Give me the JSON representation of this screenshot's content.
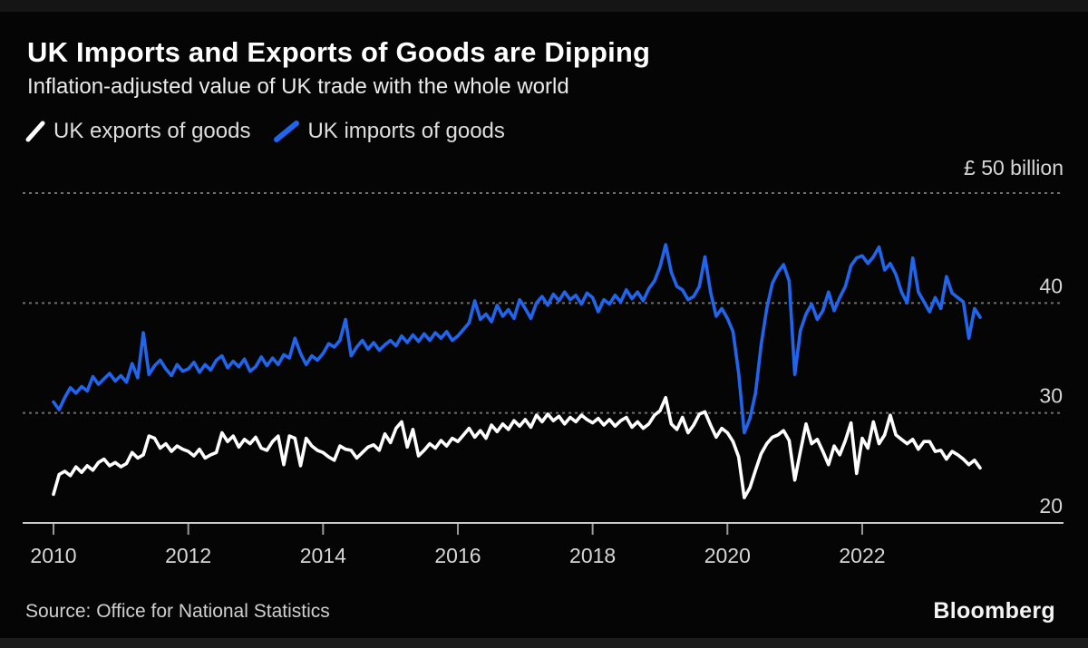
{
  "header": {
    "title": "UK Imports and Exports of Goods are Dipping",
    "subtitle": "Inflation-adjusted value of UK trade with the whole world"
  },
  "legend": [
    {
      "label": "UK exports of goods",
      "color": "#ffffff"
    },
    {
      "label": "UK imports of goods",
      "color": "#2065ec"
    }
  ],
  "footer": {
    "source": "Source: Office for National Statistics",
    "brand": "Bloomberg"
  },
  "chart_data": {
    "type": "line",
    "title": "UK Imports and Exports of Goods are Dipping",
    "subtitle": "Inflation-adjusted value of UK trade with the whole world",
    "unit_label": "£ 50 billion",
    "x_frequency": "monthly",
    "x_start": "2010-01",
    "x_end": "2023-10",
    "x_ticks": [
      2010,
      2012,
      2014,
      2016,
      2018,
      2020,
      2022
    ],
    "y_ticks_gridlines": [
      50,
      40,
      30
    ],
    "y_ticks_labeled": [
      40,
      30,
      20
    ],
    "ylim": [
      20,
      52
    ],
    "grid": "dashed-horizontal",
    "legend_position": "top-left",
    "colors": {
      "exports": "#ffffff",
      "imports": "#2065ec",
      "grid": "#6e6e6e",
      "axis": "#cbcbcb",
      "tick_text": "#d6d6d6"
    },
    "series": [
      {
        "name": "UK exports of goods",
        "color": "#ffffff",
        "values": [
          22.6,
          24.4,
          24.7,
          24.3,
          25.1,
          24.6,
          25.2,
          24.8,
          25.5,
          25.8,
          25.2,
          25.5,
          25.1,
          25.4,
          26.4,
          25.9,
          26.2,
          27.9,
          27.7,
          26.8,
          27.2,
          26.5,
          27.0,
          26.7,
          26.5,
          26.1,
          26.7,
          25.9,
          26.2,
          26.4,
          28.2,
          27.4,
          27.9,
          26.9,
          27.6,
          27.2,
          27.8,
          26.8,
          26.6,
          27.4,
          27.9,
          25.3,
          27.9,
          27.7,
          25.2,
          27.7,
          27.0,
          26.6,
          26.4,
          26.0,
          25.7,
          27.0,
          26.7,
          26.6,
          25.9,
          26.4,
          26.9,
          27.1,
          26.6,
          28.1,
          27.3,
          28.6,
          29.2,
          26.9,
          28.5,
          26.1,
          26.6,
          27.2,
          26.8,
          27.5,
          27.0,
          27.7,
          27.4,
          28.0,
          28.6,
          27.8,
          28.4,
          27.7,
          28.9,
          28.3,
          29.0,
          28.5,
          29.3,
          28.8,
          29.4,
          28.7,
          29.8,
          29.2,
          29.9,
          29.3,
          29.7,
          29.0,
          29.6,
          29.2,
          29.8,
          29.4,
          29.1,
          29.5,
          28.9,
          29.4,
          28.8,
          29.3,
          29.6,
          28.7,
          29.2,
          28.6,
          29.0,
          29.8,
          30.2,
          31.4,
          29.0,
          28.5,
          29.6,
          28.2,
          28.9,
          29.9,
          30.1,
          28.9,
          27.8,
          28.6,
          28.2,
          27.4,
          26.0,
          22.3,
          23.2,
          24.8,
          26.3,
          27.2,
          27.8,
          28.0,
          28.4,
          27.5,
          23.9,
          26.5,
          29.0,
          27.2,
          27.6,
          26.5,
          25.3,
          27.0,
          26.2,
          27.5,
          29.1,
          24.5,
          27.7,
          26.8,
          29.2,
          27.2,
          28.0,
          29.8,
          28.0,
          27.6,
          27.2,
          27.6,
          26.7,
          27.4,
          27.4,
          26.5,
          26.6,
          25.8,
          26.5,
          26.2,
          25.8,
          25.3,
          25.7,
          25.0
        ]
      },
      {
        "name": "UK imports of goods",
        "color": "#2065ec",
        "values": [
          31.0,
          30.3,
          31.4,
          32.3,
          31.8,
          32.4,
          32.0,
          33.3,
          32.6,
          33.1,
          33.6,
          32.9,
          33.4,
          32.8,
          34.5,
          33.2,
          37.3,
          33.5,
          34.3,
          34.8,
          34.0,
          33.4,
          34.4,
          33.8,
          34.0,
          34.6,
          33.7,
          34.4,
          33.9,
          34.8,
          35.2,
          34.1,
          34.7,
          34.2,
          34.9,
          33.8,
          34.2,
          35.1,
          34.3,
          35.0,
          34.4,
          35.3,
          35.0,
          36.8,
          35.4,
          34.4,
          35.2,
          34.8,
          35.4,
          36.3,
          36.0,
          36.6,
          38.5,
          35.2,
          36.0,
          36.6,
          35.8,
          36.4,
          35.7,
          36.2,
          36.6,
          36.1,
          37.0,
          36.4,
          37.1,
          36.5,
          37.2,
          36.6,
          37.3,
          36.8,
          37.4,
          36.6,
          37.0,
          37.6,
          38.2,
          40.2,
          38.5,
          39.0,
          38.3,
          39.8,
          38.8,
          39.4,
          38.6,
          40.3,
          39.5,
          38.6,
          40.0,
          40.6,
          39.8,
          40.8,
          40.2,
          41.0,
          40.3,
          40.7,
          39.9,
          40.9,
          40.5,
          39.2,
          40.3,
          39.9,
          40.7,
          40.1,
          41.2,
          40.4,
          41.0,
          40.2,
          41.3,
          42.0,
          43.3,
          45.3,
          42.8,
          41.5,
          41.2,
          40.3,
          40.6,
          41.5,
          44.2,
          41.0,
          38.8,
          39.5,
          38.6,
          37.4,
          33.6,
          28.2,
          29.5,
          31.8,
          36.2,
          39.5,
          41.8,
          42.8,
          43.5,
          42.0,
          33.5,
          37.5,
          39.0,
          39.9,
          38.5,
          39.3,
          41.0,
          39.3,
          40.5,
          41.5,
          43.4,
          44.1,
          44.3,
          43.6,
          44.2,
          45.1,
          43.0,
          43.6,
          42.6,
          41.0,
          40.0,
          44.1,
          41.0,
          40.1,
          39.2,
          40.5,
          39.5,
          42.4,
          40.9,
          40.5,
          40.1,
          36.8,
          39.5,
          38.7
        ]
      }
    ]
  }
}
